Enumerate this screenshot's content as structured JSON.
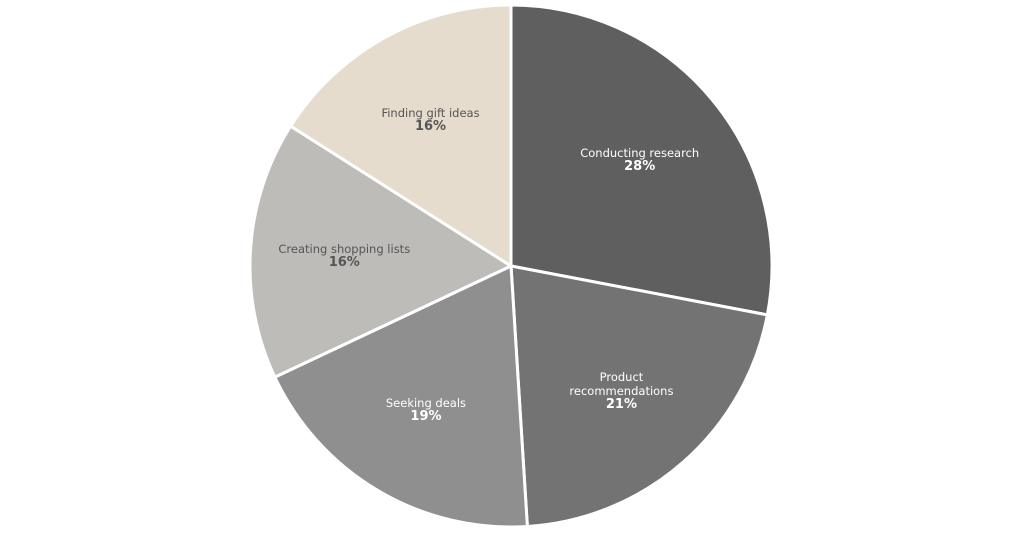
{
  "chart_data": {
    "type": "pie",
    "categories": [
      "Conducting research",
      "Product recommendations",
      "Seeking deals",
      "Creating shopping lists",
      "Finding gift ideas"
    ],
    "values": [
      28,
      21,
      19,
      16,
      16
    ],
    "value_labels": [
      "28%",
      "21%",
      "19%",
      "16%",
      "16%"
    ],
    "colors": [
      "#5f5f5f",
      "#737373",
      "#8f8f8f",
      "#bdbcb9",
      "#e6dccd"
    ],
    "start_angle": 0,
    "direction": "clockwise"
  }
}
